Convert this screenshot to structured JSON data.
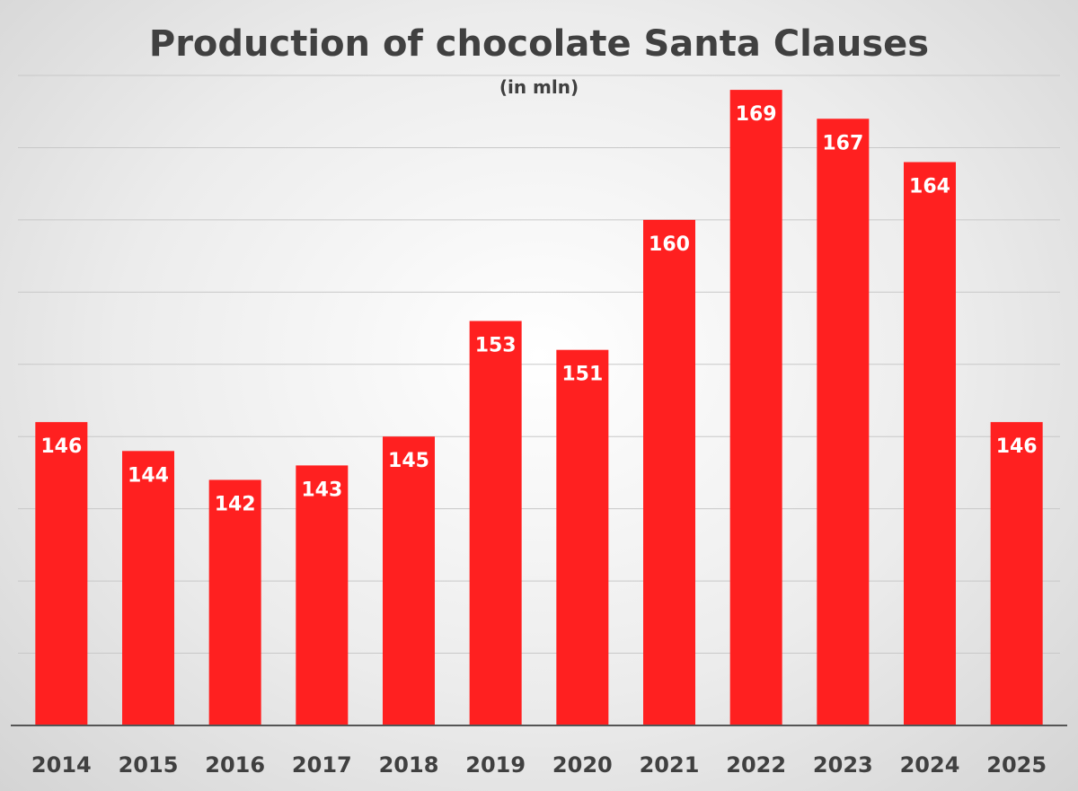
{
  "chart_data": {
    "type": "bar",
    "title": "Production of chocolate Santa Clauses",
    "subtitle": "(in mln)",
    "categories": [
      "2014",
      "2015",
      "2016",
      "2017",
      "2018",
      "2019",
      "2020",
      "2021",
      "2022",
      "2023",
      "2024",
      "2025"
    ],
    "values": [
      146,
      144,
      142,
      143,
      145,
      153,
      151,
      160,
      169,
      167,
      164,
      146
    ],
    "ylim": [
      125,
      170
    ],
    "grid": true,
    "y_axis_labels_visible": false,
    "bar_color": "#ff2020",
    "data_label_color": "#ffffff",
    "text_color": "#404040"
  }
}
